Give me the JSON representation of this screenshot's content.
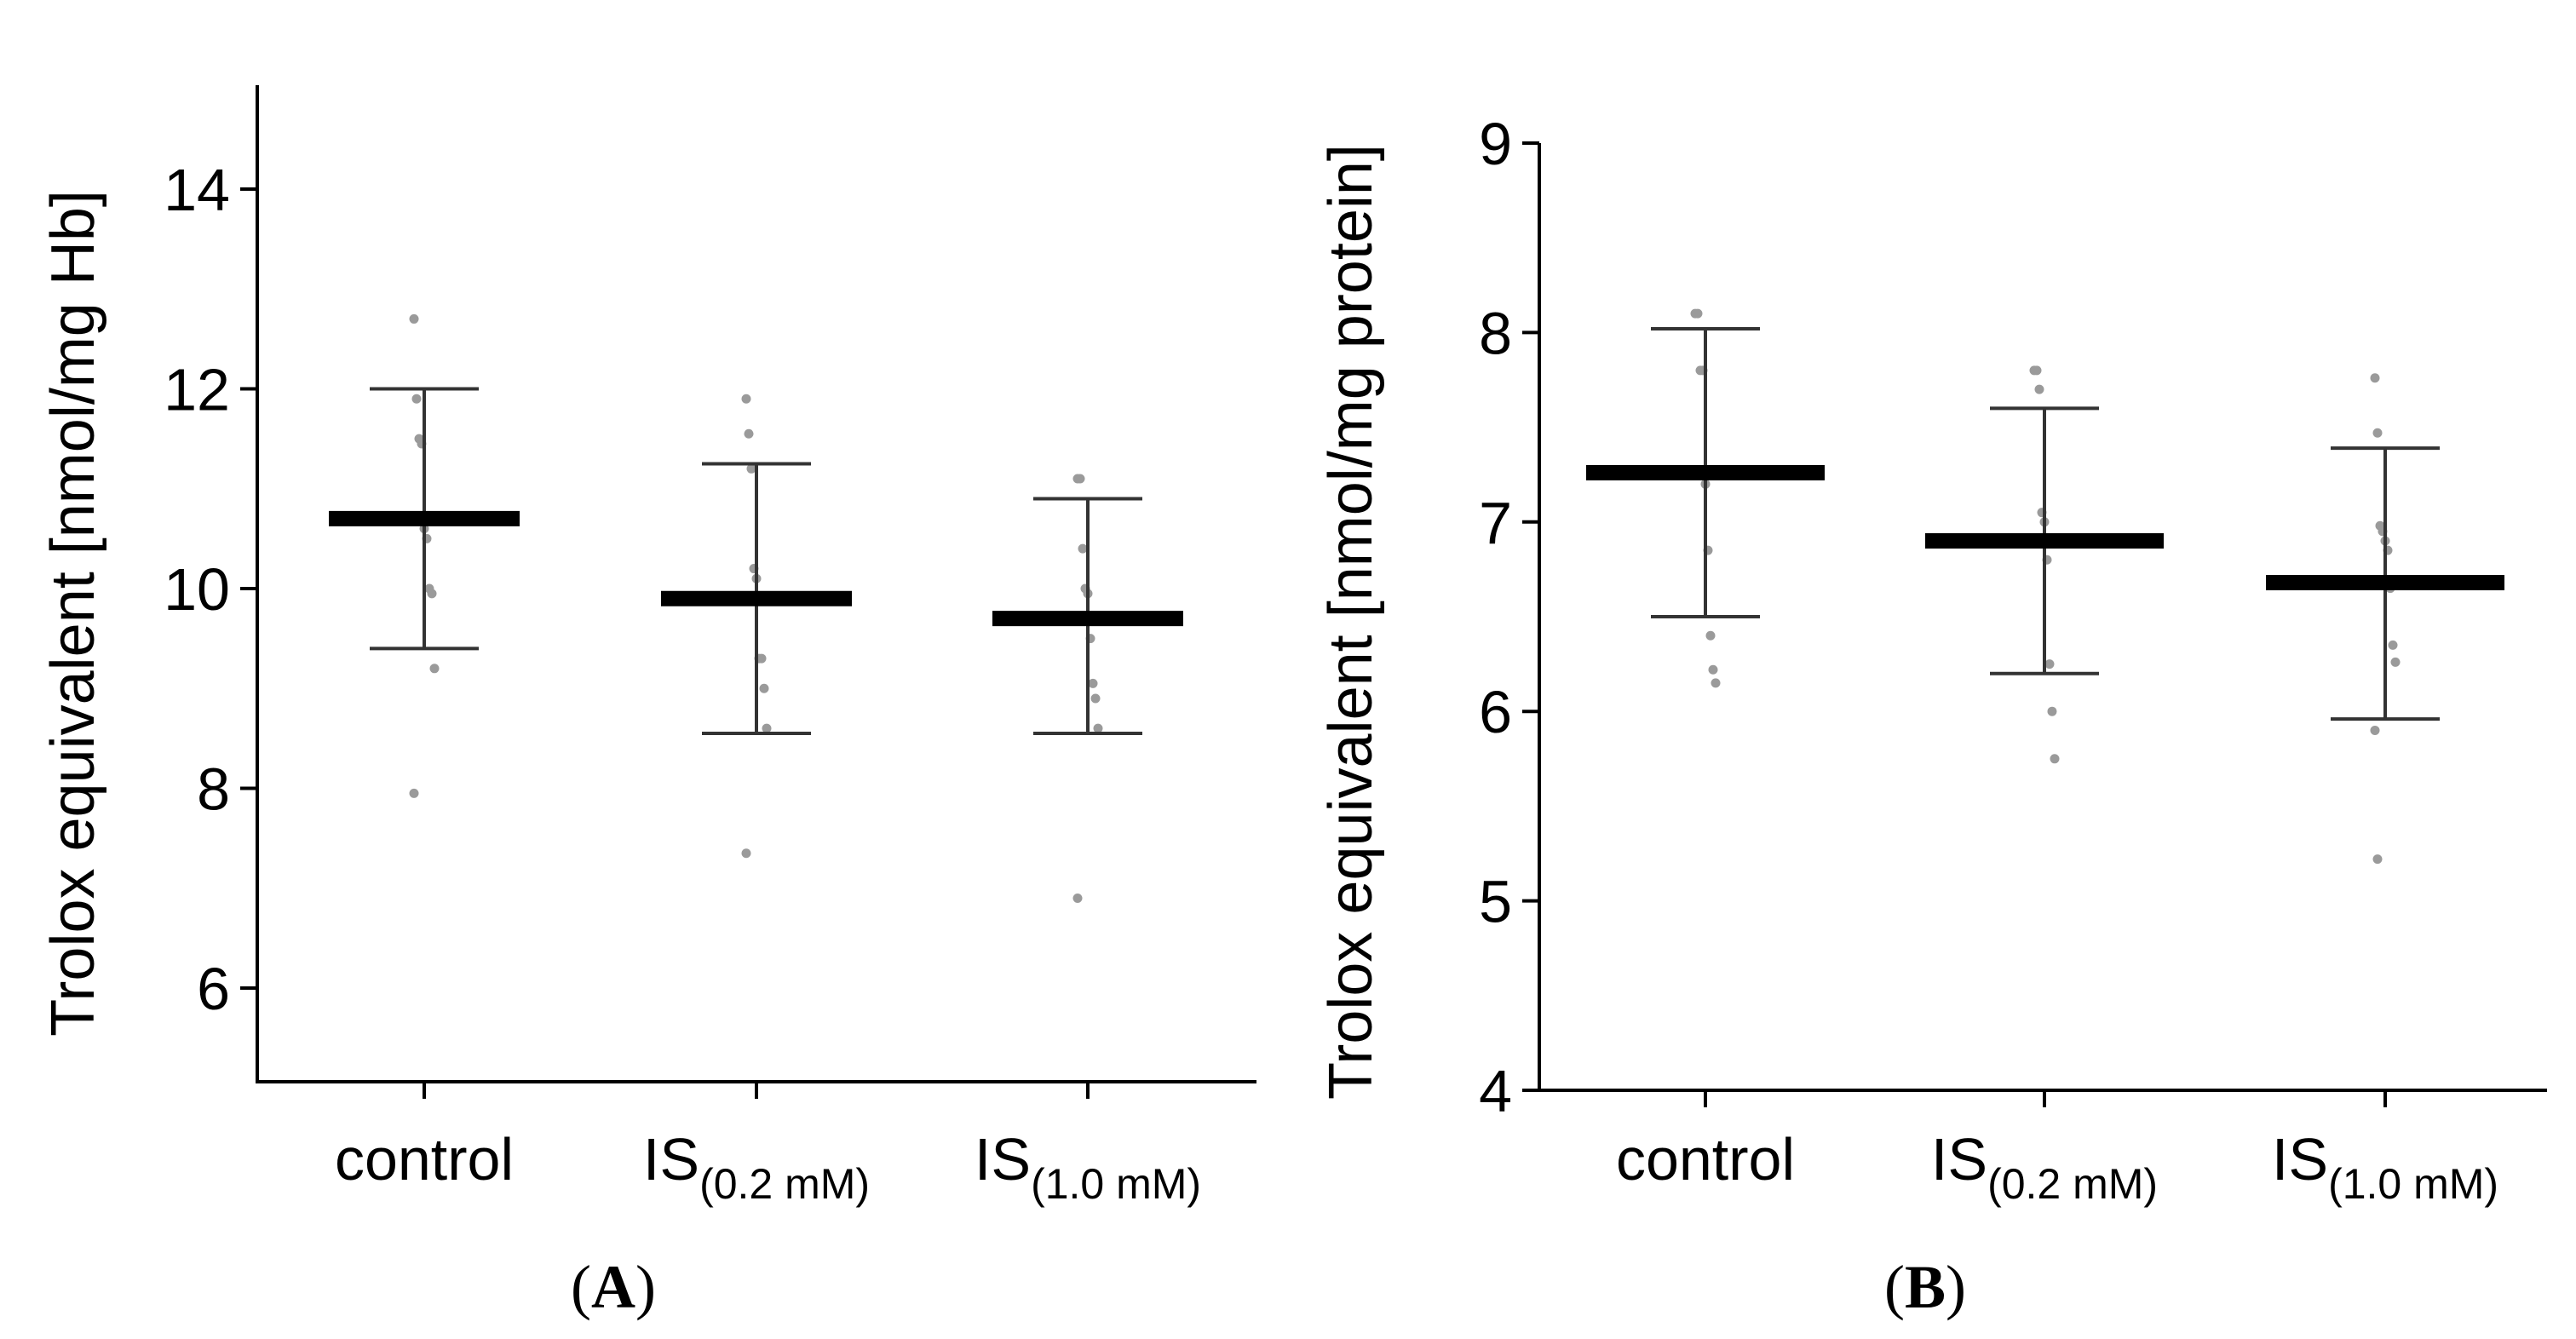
{
  "chart_data": [
    {
      "type": "scatter",
      "panel_label": "A",
      "title": "",
      "xlabel": "",
      "ylabel": "Trolox equivalent [nmol/mg Hb]",
      "ylim": [
        5,
        15
      ],
      "yticks": [
        6,
        8,
        10,
        12,
        14
      ],
      "categories": [
        {
          "main": "control",
          "sub": ""
        },
        {
          "main": "IS",
          "sub": "(0.2 mM)"
        },
        {
          "main": "IS",
          "sub": "(1.0 mM)"
        }
      ],
      "means": [
        10.7,
        9.9,
        9.7
      ],
      "sd_upper": [
        12.0,
        11.25,
        10.9
      ],
      "sd_lower": [
        9.4,
        8.55,
        8.55
      ],
      "points": [
        [
          12.7,
          11.9,
          11.5,
          11.45,
          10.6,
          10.5,
          10.0,
          9.95,
          9.2,
          7.95
        ],
        [
          11.9,
          11.55,
          11.2,
          10.2,
          10.1,
          9.3,
          9.3,
          9.0,
          8.6,
          7.35
        ],
        [
          11.1,
          11.1,
          10.4,
          10.0,
          9.95,
          9.5,
          9.05,
          8.9,
          8.6,
          6.9
        ]
      ]
    },
    {
      "type": "scatter",
      "panel_label": "B",
      "title": "",
      "xlabel": "",
      "ylabel": "Trolox equivalent [nmol/mg protein]",
      "ylim": [
        4,
        9
      ],
      "yticks": [
        4,
        5,
        6,
        7,
        8,
        9
      ],
      "categories": [
        {
          "main": "control",
          "sub": ""
        },
        {
          "main": "IS",
          "sub": "(0.2 mM)"
        },
        {
          "main": "IS",
          "sub": "(1.0 mM)"
        }
      ],
      "means": [
        7.26,
        6.9,
        6.68
      ],
      "sd_upper": [
        8.02,
        7.6,
        7.39
      ],
      "sd_lower": [
        6.5,
        6.2,
        5.96
      ],
      "points": [
        [
          8.1,
          8.1,
          7.8,
          7.8,
          7.2,
          6.85,
          6.4,
          6.22,
          6.15
        ],
        [
          7.8,
          7.8,
          7.7,
          7.05,
          7.0,
          6.8,
          6.25,
          6.0,
          5.75
        ],
        [
          7.76,
          7.47,
          6.98,
          6.95,
          6.9,
          6.85,
          6.65,
          6.35,
          6.26,
          5.9,
          5.22
        ]
      ]
    }
  ]
}
